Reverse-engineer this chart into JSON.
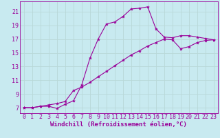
{
  "xlabel": "Windchill (Refroidissement éolien,°C)",
  "background_color": "#c8eaf0",
  "grid_color": "#aacccc",
  "line_color": "#990099",
  "xlim": [
    -0.5,
    23.5
  ],
  "ylim": [
    6.2,
    22.5
  ],
  "xticks": [
    0,
    1,
    2,
    3,
    4,
    5,
    6,
    7,
    8,
    9,
    10,
    11,
    12,
    13,
    14,
    15,
    16,
    17,
    18,
    19,
    20,
    21,
    22,
    23
  ],
  "yticks": [
    7,
    9,
    11,
    13,
    15,
    17,
    19,
    21
  ],
  "curve1_x": [
    0,
    1,
    2,
    3,
    4,
    5,
    6,
    7,
    8,
    9,
    10,
    11,
    12,
    13,
    14,
    15,
    16,
    17,
    18,
    19,
    20,
    21,
    22,
    23
  ],
  "curve1_y": [
    7.0,
    7.0,
    7.2,
    7.2,
    6.9,
    7.5,
    8.0,
    10.3,
    14.2,
    17.0,
    19.2,
    19.5,
    20.3,
    21.4,
    21.5,
    21.7,
    18.5,
    17.3,
    17.2,
    17.5,
    17.5,
    17.3,
    17.1,
    16.9
  ],
  "curve2_x": [
    0,
    1,
    2,
    3,
    4,
    5,
    6,
    7,
    8,
    9,
    10,
    11,
    12,
    13,
    14,
    15,
    16,
    17,
    18,
    19,
    20,
    21,
    22,
    23
  ],
  "curve2_y": [
    7.0,
    7.0,
    7.2,
    7.4,
    7.6,
    7.9,
    9.5,
    10.0,
    10.7,
    11.5,
    12.3,
    13.1,
    13.9,
    14.7,
    15.3,
    16.0,
    16.5,
    17.0,
    16.9,
    15.6,
    15.9,
    16.5,
    16.8,
    16.9
  ],
  "font_size_tick": 6,
  "font_size_label": 6.5
}
